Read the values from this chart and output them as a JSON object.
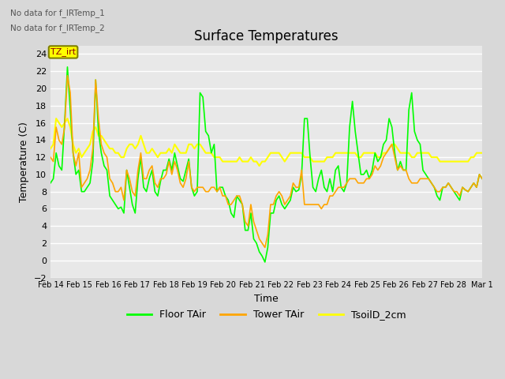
{
  "title": "Surface Temperatures",
  "xlabel": "Time",
  "ylabel": "Temperature (C)",
  "ylim": [
    -2,
    25
  ],
  "yticks": [
    -2,
    0,
    2,
    4,
    6,
    8,
    10,
    12,
    14,
    16,
    18,
    20,
    22,
    24
  ],
  "xlabels": [
    "Feb 14",
    "Feb 15",
    "Feb 16",
    "Feb 17",
    "Feb 18",
    "Feb 19",
    "Feb 20",
    "Feb 21",
    "Feb 22",
    "Feb 23",
    "Feb 24",
    "Feb 25",
    "Feb 26",
    "Feb 27",
    "Feb 28",
    "Mar 1"
  ],
  "no_data_text": [
    "No data for f_IRTemp_1",
    "No data for f_IRTemp_2"
  ],
  "tz_label": "TZ_irt",
  "legend_entries": [
    "Floor TAir",
    "Tower TAir",
    "TsoilD_2cm"
  ],
  "line_colors": [
    "#00ff00",
    "#ffa500",
    "#ffff00"
  ],
  "background_color": "#e8e8e8",
  "plot_bg_color": "#e8e8e8",
  "grid_color": "#ffffff",
  "floor_tair": [
    9.0,
    9.5,
    12.5,
    11.0,
    10.5,
    16.0,
    22.5,
    17.5,
    12.5,
    10.0,
    10.5,
    8.0,
    8.0,
    8.5,
    9.0,
    11.5,
    21.0,
    15.0,
    12.5,
    11.0,
    10.5,
    7.5,
    7.0,
    6.5,
    6.0,
    6.2,
    5.5,
    10.5,
    8.5,
    6.5,
    5.5,
    9.5,
    12.0,
    8.5,
    8.0,
    9.5,
    10.5,
    8.0,
    7.5,
    9.2,
    10.5,
    10.5,
    11.8,
    10.5,
    12.5,
    11.0,
    9.5,
    9.2,
    10.5,
    11.8,
    8.5,
    7.5,
    8.0,
    19.5,
    19.0,
    15.0,
    14.5,
    12.5,
    13.5,
    8.0,
    8.5,
    8.5,
    7.5,
    7.0,
    5.5,
    5.0,
    7.5,
    7.0,
    6.5,
    3.5,
    3.5,
    5.5,
    2.5,
    2.0,
    1.0,
    0.5,
    -0.2,
    1.5,
    5.5,
    5.5,
    7.0,
    7.5,
    6.5,
    6.0,
    6.5,
    7.0,
    8.5,
    8.0,
    8.2,
    10.0,
    16.5,
    16.5,
    12.0,
    8.5,
    8.0,
    9.5,
    10.5,
    8.5,
    8.0,
    9.5,
    8.0,
    10.5,
    11.0,
    8.5,
    8.0,
    9.0,
    15.5,
    18.5,
    15.0,
    12.5,
    10.0,
    10.0,
    10.5,
    9.5,
    10.5,
    12.5,
    11.5,
    12.0,
    13.5,
    14.0,
    16.5,
    15.5,
    12.5,
    10.5,
    11.5,
    10.5,
    10.5,
    17.5,
    19.5,
    15.0,
    14.0,
    13.5,
    10.5,
    10.0,
    9.5,
    9.0,
    8.5,
    7.5,
    7.0,
    8.5,
    8.5,
    9.0,
    8.5,
    8.0,
    7.5,
    7.0,
    8.5,
    8.2,
    8.0,
    8.5,
    9.0,
    8.5,
    10.0,
    9.5
  ],
  "tower_tair": [
    12.0,
    11.5,
    15.5,
    14.0,
    13.5,
    15.5,
    21.5,
    19.5,
    12.5,
    11.0,
    12.5,
    8.5,
    9.0,
    9.5,
    10.5,
    13.0,
    21.0,
    16.5,
    13.5,
    12.5,
    12.0,
    9.5,
    9.0,
    8.0,
    8.0,
    8.5,
    7.0,
    10.5,
    9.5,
    8.0,
    7.5,
    10.5,
    12.5,
    9.5,
    9.5,
    10.5,
    11.0,
    9.0,
    8.5,
    9.5,
    9.5,
    10.0,
    11.5,
    10.0,
    11.5,
    10.5,
    9.0,
    8.5,
    9.5,
    11.5,
    8.5,
    8.0,
    8.5,
    8.5,
    8.5,
    8.0,
    8.0,
    8.5,
    8.5,
    8.0,
    8.5,
    7.5,
    7.5,
    6.5,
    6.5,
    7.0,
    7.5,
    7.5,
    6.5,
    4.5,
    4.0,
    6.5,
    4.5,
    3.5,
    2.5,
    2.0,
    1.5,
    3.0,
    6.5,
    6.5,
    7.5,
    8.0,
    7.5,
    6.5,
    7.0,
    7.5,
    9.0,
    8.5,
    8.5,
    10.5,
    6.5,
    6.5,
    6.5,
    6.5,
    6.5,
    6.5,
    6.0,
    6.5,
    6.5,
    7.5,
    7.5,
    8.0,
    8.5,
    8.5,
    8.5,
    9.0,
    9.5,
    9.5,
    9.5,
    9.0,
    9.0,
    9.0,
    9.5,
    9.5,
    10.0,
    11.0,
    10.5,
    11.0,
    12.0,
    12.5,
    13.0,
    13.5,
    12.0,
    10.5,
    11.0,
    10.5,
    10.5,
    9.5,
    9.0,
    9.0,
    9.0,
    9.5,
    9.5,
    9.5,
    9.5,
    9.0,
    8.5,
    8.0,
    8.0,
    8.5,
    8.5,
    9.0,
    8.5,
    8.0,
    8.0,
    7.5,
    8.5,
    8.2,
    8.0,
    8.5,
    9.0,
    8.5,
    10.0,
    9.5
  ],
  "tsoil_2cm": [
    13.0,
    13.5,
    16.5,
    16.0,
    15.5,
    16.0,
    16.5,
    15.5,
    13.5,
    12.5,
    13.0,
    12.0,
    12.5,
    13.0,
    13.5,
    15.0,
    15.5,
    14.5,
    14.5,
    14.0,
    13.5,
    13.0,
    13.0,
    12.5,
    12.5,
    12.0,
    12.0,
    13.0,
    13.5,
    13.5,
    13.0,
    13.5,
    14.5,
    13.5,
    12.5,
    12.5,
    13.0,
    12.5,
    12.0,
    12.5,
    12.5,
    12.5,
    13.0,
    12.5,
    13.5,
    13.0,
    12.5,
    12.5,
    12.5,
    13.5,
    13.5,
    13.0,
    13.5,
    13.5,
    13.0,
    12.5,
    12.5,
    12.5,
    12.0,
    12.0,
    12.0,
    11.5,
    11.5,
    11.5,
    11.5,
    11.5,
    11.5,
    12.0,
    11.5,
    11.5,
    11.5,
    12.0,
    11.5,
    11.5,
    11.0,
    11.5,
    11.5,
    12.0,
    12.5,
    12.5,
    12.5,
    12.5,
    12.0,
    11.5,
    12.0,
    12.5,
    12.5,
    12.5,
    12.5,
    12.5,
    12.0,
    12.0,
    12.0,
    11.5,
    11.5,
    11.5,
    11.5,
    11.5,
    12.0,
    12.0,
    12.0,
    12.5,
    12.5,
    12.5,
    12.5,
    12.5,
    12.5,
    12.5,
    12.5,
    12.0,
    12.0,
    12.5,
    12.5,
    12.5,
    12.5,
    12.5,
    12.0,
    12.0,
    12.5,
    12.5,
    13.0,
    13.5,
    13.5,
    13.0,
    12.5,
    12.5,
    12.5,
    12.5,
    12.0,
    12.0,
    12.5,
    12.5,
    12.5,
    12.5,
    12.5,
    12.0,
    12.0,
    12.0,
    11.5,
    11.5,
    11.5,
    11.5,
    11.5,
    11.5,
    11.5,
    11.5,
    11.5,
    11.5,
    11.5,
    12.0,
    12.0,
    12.5,
    12.5,
    12.5
  ]
}
